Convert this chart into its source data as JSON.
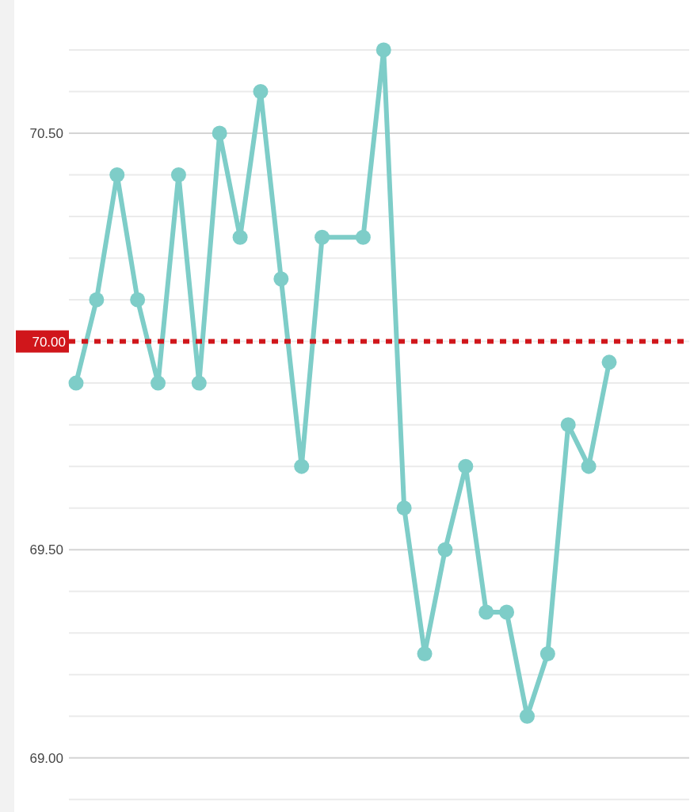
{
  "chart_data": {
    "type": "line",
    "categories": [
      null,
      null,
      null,
      null,
      null,
      null,
      null,
      null,
      null,
      null,
      null,
      null,
      null,
      null,
      null,
      null,
      null,
      null,
      null,
      null,
      null,
      null,
      null,
      null,
      null,
      null,
      null
    ],
    "ylim": [
      68.87,
      70.82
    ],
    "yticks": [
      {
        "value": 68.9,
        "label": null
      },
      {
        "value": 69,
        "label": "69.00"
      },
      {
        "value": 69.1,
        "label": null
      },
      {
        "value": 69.2,
        "label": null
      },
      {
        "value": 69.3,
        "label": null
      },
      {
        "value": 69.4,
        "label": null
      },
      {
        "value": 69.5,
        "label": "69.50"
      },
      {
        "value": 69.6,
        "label": null
      },
      {
        "value": 69.7,
        "label": null
      },
      {
        "value": 69.8,
        "label": null
      },
      {
        "value": 69.9,
        "label": null
      },
      {
        "value": 70,
        "label": null
      },
      {
        "value": 70.1,
        "label": null
      },
      {
        "value": 70.2,
        "label": null
      },
      {
        "value": 70.3,
        "label": null
      },
      {
        "value": 70.4,
        "label": null
      },
      {
        "value": 70.5,
        "label": "70.50"
      },
      {
        "value": 70.6,
        "label": null
      },
      {
        "value": 70.7,
        "label": null
      }
    ],
    "grid": "y",
    "marker": "circle",
    "line_style": "solid",
    "series": [
      {
        "color": "#7ecdc8",
        "values": [
          69.9,
          70.1,
          70.4,
          70.1,
          69.9,
          70.4,
          69.9,
          70.5,
          70.25,
          70.6,
          70.15,
          69.7,
          70.25,
          null,
          70.25,
          70.7,
          69.6,
          69.25,
          69.5,
          69.7,
          69.35,
          69.35,
          69.1,
          69.25,
          69.8,
          69.7,
          69.95
        ]
      }
    ],
    "ref_lines": [
      {
        "axis": "y",
        "value": 70,
        "label": "70.00",
        "color": "#d0161b",
        "line_style": "dotted"
      }
    ]
  }
}
